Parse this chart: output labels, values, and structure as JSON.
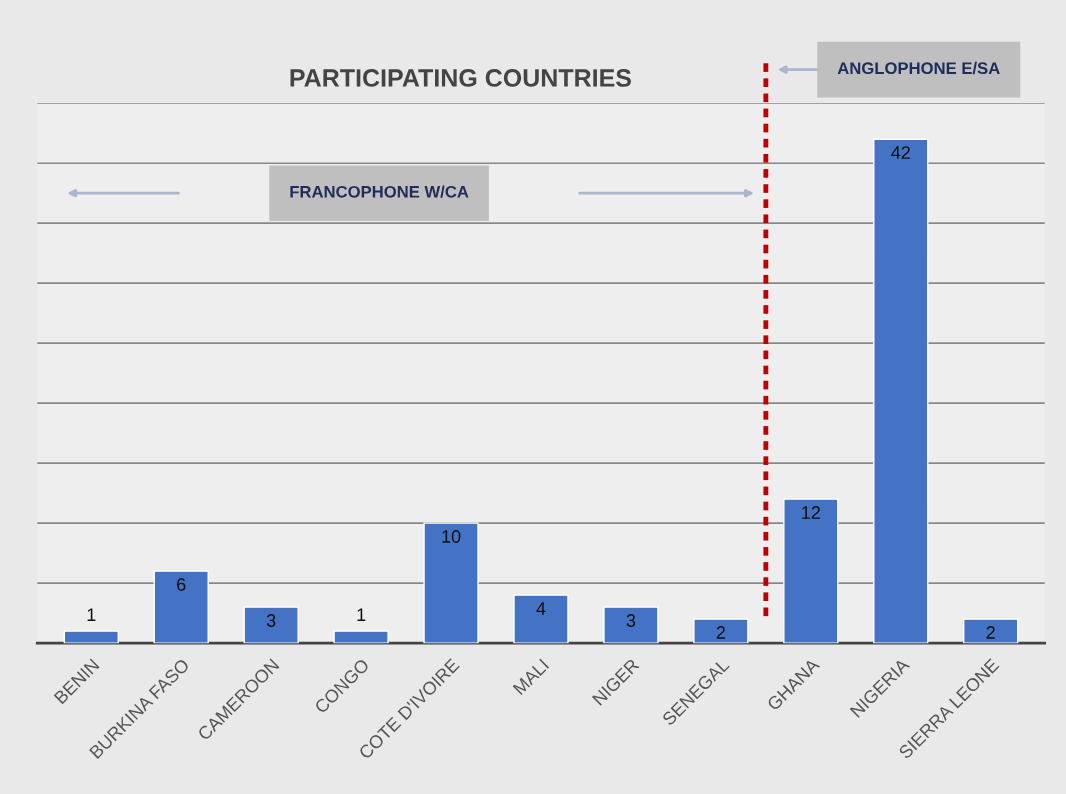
{
  "chart_data": {
    "type": "bar",
    "title": "PARTICIPATING COUNTRIES",
    "categories": [
      "BENIN",
      "BURKINA FASO",
      "CAMEROON",
      "CONGO",
      "COTE D'IVOIRE",
      "MALI",
      "NIGER",
      "SENEGAL",
      "GHANA",
      "NIGERIA",
      "SIERRA LEONE"
    ],
    "values": [
      1,
      6,
      3,
      1,
      10,
      4,
      3,
      2,
      12,
      42,
      2
    ],
    "color": "#4472c4",
    "data_labels": true,
    "ylim": [
      0,
      45
    ],
    "yticks": [
      {
        "value": 0,
        "label": null
      },
      {
        "value": 5,
        "label": null
      },
      {
        "value": 10,
        "label": null
      },
      {
        "value": 15,
        "label": null
      },
      {
        "value": 20,
        "label": null
      },
      {
        "value": 25,
        "label": null
      },
      {
        "value": 30,
        "label": null
      },
      {
        "value": 35,
        "label": null
      },
      {
        "value": 40,
        "label": null
      },
      {
        "value": 45,
        "label": null
      }
    ],
    "tick_labels": "x",
    "grid": "y",
    "annotations": [
      "FRANCOPHONE W/CA",
      "ANGLOPHONE E/SA"
    ]
  }
}
